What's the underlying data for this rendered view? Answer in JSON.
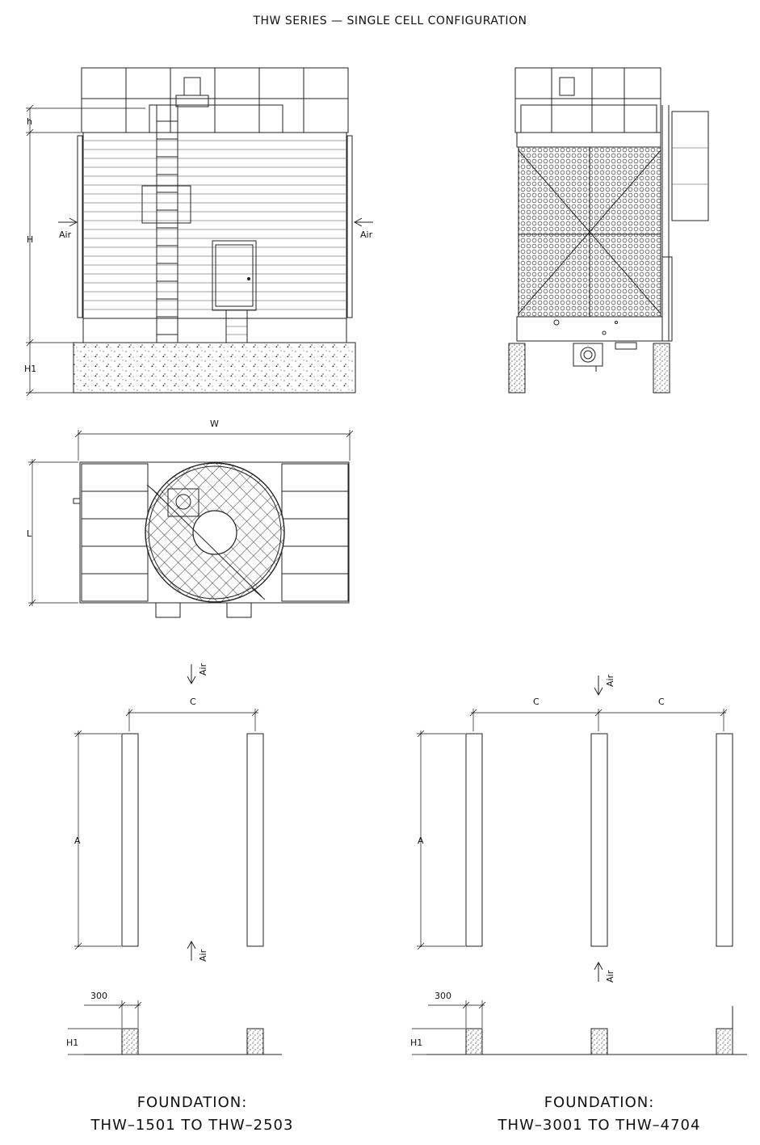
{
  "title": "THW SERIES — SINGLE CELL CONFIGURATION",
  "front_view": {
    "dim_h": "h",
    "dim_H": "H",
    "dim_H1": "H1",
    "air_left": "Air",
    "air_right": "Air"
  },
  "plan_view": {
    "dim_W": "W",
    "dim_L": "L"
  },
  "foundation_left": {
    "dim_C": "C",
    "dim_A": "A",
    "air_top": "Air",
    "air_bottom": "Air",
    "dim_300": "300",
    "dim_H1": "H1",
    "caption_line1": "FOUNDATION:",
    "caption_line2": "THW–1501 TO THW–2503"
  },
  "foundation_right": {
    "dim_C1": "C",
    "dim_C2": "C",
    "dim_A": "A",
    "air_top": "Air",
    "air_bottom": "Air",
    "dim_300": "300",
    "dim_H1": "H1",
    "caption_line1": "FOUNDATION:",
    "caption_line2": "THW–3001 TO THW–4704"
  }
}
